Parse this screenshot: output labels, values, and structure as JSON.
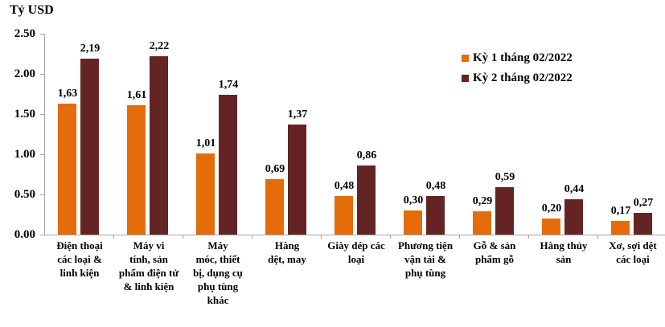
{
  "chart_data": {
    "type": "bar",
    "title": "",
    "ylabel": "Tỷ USD",
    "xlabel": "",
    "ylim": [
      0,
      2.5
    ],
    "yticks": [
      "0.00",
      "0.50",
      "1.00",
      "1.50",
      "2.00",
      "2.50"
    ],
    "grid": false,
    "legend_position": "top-right",
    "categories": [
      "Điện thoại các loại & linh kiện",
      "Máy vi tính, sản phẩm điện tử & linh kiện",
      "Máy móc, thiết bị, dụng cụ phụ tùng khác",
      "Hàng dệt, may",
      "Giày dép các loại",
      "Phương tiện vận tải & phụ tùng",
      "Gỗ & sản phẩm gỗ",
      "Hàng thủy sản",
      "Xơ, sợi dệt các loại"
    ],
    "category_lines": [
      [
        "Điện thoại",
        "các loại &",
        "linh kiện"
      ],
      [
        "Máy vi",
        "tính, sản",
        "phẩm điện tử",
        "& linh kiện"
      ],
      [
        "Máy",
        "móc, thiết",
        "bị, dụng cụ",
        "phụ tùng",
        "khác"
      ],
      [
        "Hàng",
        "dệt, may"
      ],
      [
        "Giày dép các",
        "loại"
      ],
      [
        "Phương tiện",
        "vận tải &",
        "phụ tùng"
      ],
      [
        "Gỗ & sản",
        "phẩm gỗ"
      ],
      [
        "Hàng thủy",
        "sản"
      ],
      [
        "Xơ, sợi dệt",
        "các loại"
      ]
    ],
    "series": [
      {
        "name": "Kỳ 1 tháng 02/2022",
        "color": "#E46C0A",
        "values": [
          1.63,
          1.61,
          1.01,
          0.69,
          0.48,
          0.3,
          0.29,
          0.2,
          0.17
        ],
        "labels": [
          "1,63",
          "1,61",
          "1,01",
          "0,69",
          "0,48",
          "0,30",
          "0,29",
          "0,20",
          "0,17"
        ]
      },
      {
        "name": "Kỳ 2 tháng 02/2022",
        "color": "#632423",
        "values": [
          2.19,
          2.22,
          1.74,
          1.37,
          0.86,
          0.48,
          0.59,
          0.44,
          0.27
        ],
        "labels": [
          "2,19",
          "2,22",
          "1,74",
          "1,37",
          "0,86",
          "0,48",
          "0,59",
          "0,44",
          "0,27"
        ]
      }
    ]
  }
}
